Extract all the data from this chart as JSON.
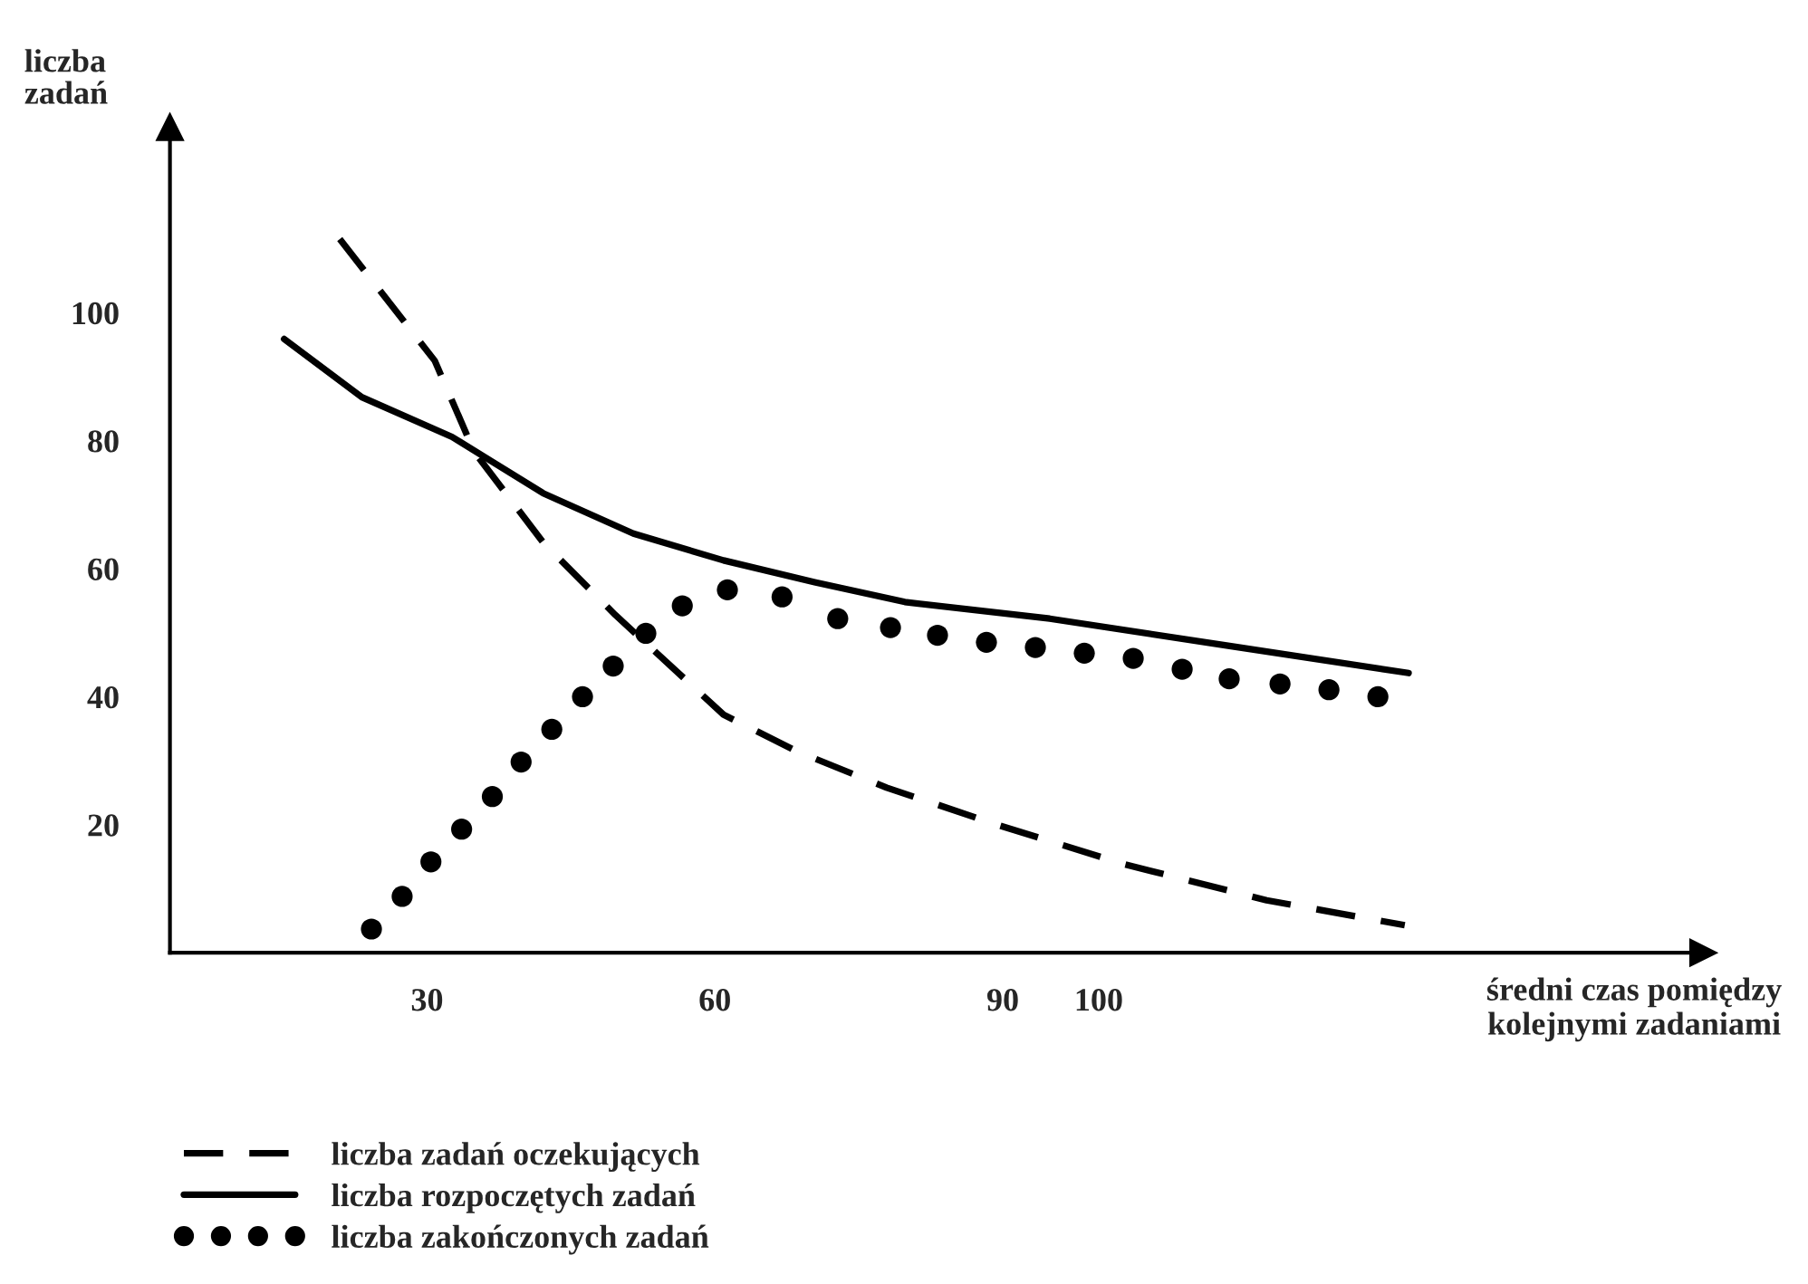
{
  "chart_data": {
    "type": "line",
    "xlabel": "średni czas pomiędzy\nkolejnymi zadaniami",
    "ylabel": "liczba\nzadań",
    "xlim": [
      3.2,
      163
    ],
    "ylim": [
      0,
      129
    ],
    "xticks": [
      30,
      60,
      90,
      100
    ],
    "yticks": [
      20,
      40,
      60,
      80,
      100
    ],
    "grid": false,
    "legend": "bottom left",
    "series": [
      {
        "name": "liczba zadań oczekujących",
        "color": "#000000",
        "line_style": "dashed",
        "x": [
          20.9,
          30.8,
          34.9,
          42.1,
          49.6,
          60.9,
          68.5,
          77.9,
          89.2,
          102.5,
          117.5,
          131.9
        ],
        "values": [
          111.5,
          92.5,
          78.3,
          64.1,
          52.8,
          37.2,
          31.5,
          25.8,
          20.1,
          13.9,
          8.2,
          4.3
        ]
      },
      {
        "name": "liczba rozpoczętych zadań",
        "color": "#000000",
        "line_style": "solid",
        "x": [
          15.1,
          23.2,
          32.6,
          42.1,
          51.5,
          60.9,
          70.4,
          79.8,
          94.9,
          113.8,
          132.3
        ],
        "values": [
          95.9,
          86.8,
          80.6,
          71.8,
          65.5,
          61.3,
          57.9,
          54.8,
          52.2,
          47.9,
          43.7
        ]
      },
      {
        "name": "liczba zakończonych zadań",
        "color": "#000000",
        "type": "scatter",
        "marker": "circle",
        "x": [
          24.2,
          27.4,
          30.4,
          33.6,
          36.8,
          39.8,
          43.0,
          46.2,
          49.4,
          52.8,
          56.6,
          61.3,
          67.0,
          72.8,
          78.3,
          83.2,
          88.3,
          93.4,
          98.5,
          103.6,
          108.7,
          113.6,
          118.9,
          124.0,
          129.1
        ],
        "values": [
          3.7,
          8.8,
          14.2,
          19.3,
          24.4,
          29.8,
          34.9,
          40.0,
          44.8,
          49.9,
          54.2,
          56.7,
          55.6,
          52.2,
          50.8,
          49.6,
          48.5,
          47.7,
          46.8,
          46.0,
          44.3,
          42.8,
          42.0,
          41.1,
          40.0
        ]
      }
    ]
  }
}
